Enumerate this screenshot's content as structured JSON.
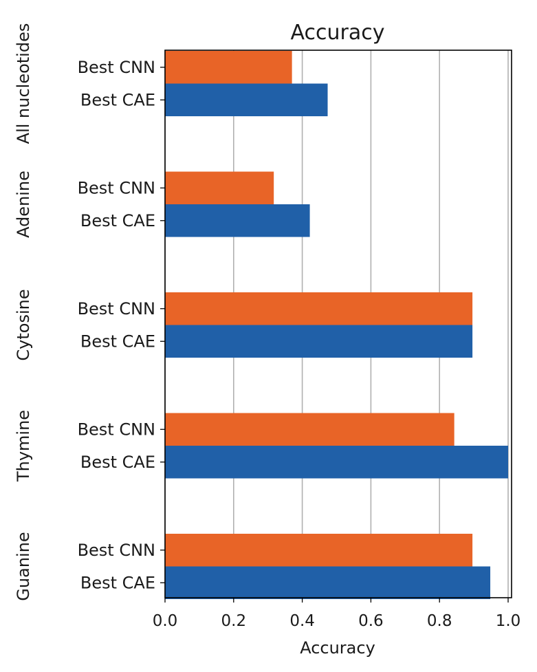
{
  "chart_data": {
    "type": "bar",
    "orientation": "horizontal",
    "title": "Accuracy",
    "xlabel": "Accuracy",
    "xlim": [
      0,
      1.01
    ],
    "xticks": [
      "0.0",
      "0.2",
      "0.4",
      "0.6",
      "0.8",
      "1.0"
    ],
    "grid": "vertical",
    "groups": [
      {
        "name": "All nucleotides",
        "bars": [
          {
            "label": "Best CNN",
            "value": 0.37
          },
          {
            "label": "Best CAE",
            "value": 0.474
          }
        ]
      },
      {
        "name": "Adenine",
        "bars": [
          {
            "label": "Best CNN",
            "value": 0.317
          },
          {
            "label": "Best CAE",
            "value": 0.422
          }
        ]
      },
      {
        "name": "Cytosine",
        "bars": [
          {
            "label": "Best CNN",
            "value": 0.896
          },
          {
            "label": "Best CAE",
            "value": 0.896
          }
        ]
      },
      {
        "name": "Thymine",
        "bars": [
          {
            "label": "Best CNN",
            "value": 0.843
          },
          {
            "label": "Best CAE",
            "value": 1.0
          }
        ]
      },
      {
        "name": "Guanine",
        "bars": [
          {
            "label": "Best CNN",
            "value": 0.896
          },
          {
            "label": "Best CAE",
            "value": 0.948
          }
        ]
      }
    ],
    "colors": {
      "Best CNN": "#e86427",
      "Best CAE": "#2060a8"
    }
  }
}
